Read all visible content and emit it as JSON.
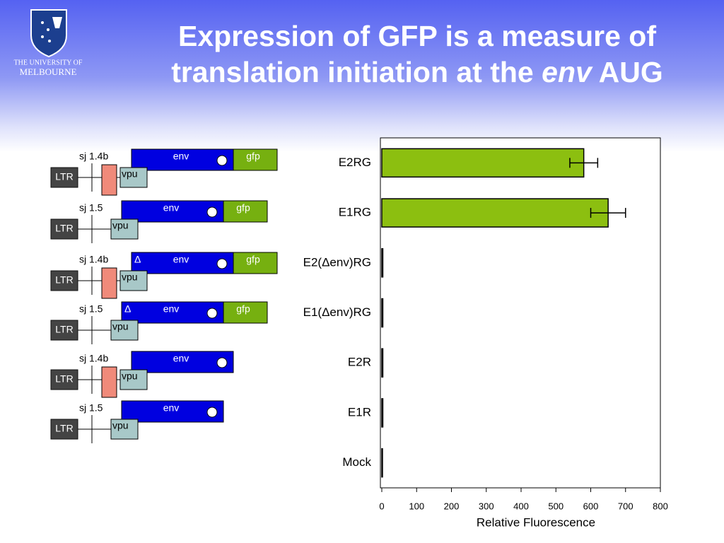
{
  "logo": {
    "line1": "THE UNIVERSITY OF",
    "line2": "MELBOURNE"
  },
  "header": {
    "line1": "Expression of GFP is a measure of",
    "line2": "translation initiation at the",
    "italic": "env",
    "end": "AUG"
  },
  "constructs": [
    {
      "sj": "sj 1.4b",
      "ltr": "LTR",
      "vpu": "vpu",
      "env": "env",
      "gfp": "gfp"
    },
    {
      "sj": "sj 1.5",
      "ltr": "LTR",
      "vpu": "vpu",
      "env": "env",
      "gfp": "gfp"
    },
    {
      "sj": "sj 1.4b",
      "ltr": "LTR",
      "vpu": "vpu",
      "delta": "Δ",
      "env": "env",
      "gfp": "gfp"
    },
    {
      "sj": "sj 1.5",
      "ltr": "LTR",
      "vpu": "vpu",
      "delta": "Δ",
      "env": "env",
      "gfp": "gfp"
    },
    {
      "sj": "sj 1.4b",
      "ltr": "LTR",
      "vpu": "vpu",
      "env": "env"
    },
    {
      "sj": "sj 1.5",
      "ltr": "LTR",
      "vpu": "vpu",
      "env": "env"
    }
  ],
  "chart_data": {
    "type": "bar",
    "orientation": "horizontal",
    "categories": [
      "E2RG",
      "E1RG",
      "E2(Δenv)RG",
      "E1(Δenv)RG",
      "E2R",
      "E1R",
      "Mock"
    ],
    "values": [
      580,
      650,
      3,
      3,
      3,
      3,
      2
    ],
    "errors": [
      40,
      50,
      null,
      null,
      null,
      null,
      null
    ],
    "color": "#8cbf10",
    "xlim": [
      0,
      800
    ],
    "xticks": [
      0,
      100,
      200,
      300,
      400,
      500,
      600,
      700,
      800
    ],
    "xlabel": "Relative Fluorescence"
  }
}
